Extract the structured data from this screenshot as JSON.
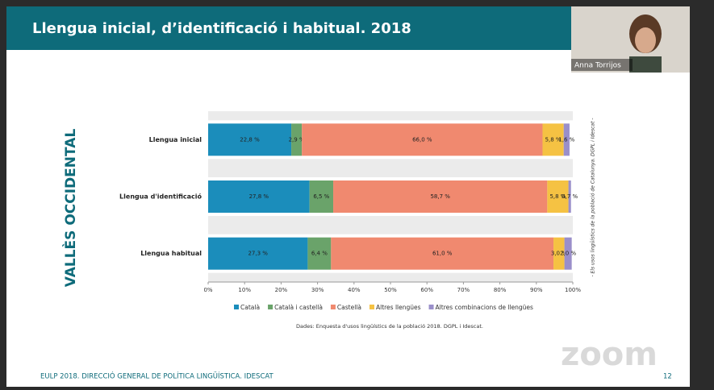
{
  "header": {
    "title": "Llengua inicial, d’identificació i habitual. 2018"
  },
  "video": {
    "name": "Anna Torrijos"
  },
  "watermark": "zoom",
  "footer": {
    "text": "EULP 2018. DIRECCIÓ GENERAL DE POLÍTICA LINGÜÍSTICA. IDESCAT",
    "page": "12"
  },
  "chart_data": {
    "type": "bar",
    "orientation": "horizontal",
    "stacked": true,
    "side_title": "VALLÈS OCCIDENTAL",
    "side_note": "- Els usos lingüístics de la població de Catalunya. DGPL i Idescat -",
    "source": "Dades: Enquesta d'usos lingüístics de la població 2018. DGPL i Idescat.",
    "categories": [
      "Llengua inicial",
      "Llengua d'identificació",
      "Llengua habitual"
    ],
    "series": [
      {
        "name": "Català",
        "color": "#1b8dbb",
        "values": [
          22.8,
          27.8,
          27.3
        ],
        "value_labels": [
          "22,8 %",
          "27,8 %",
          "27,3 %"
        ]
      },
      {
        "name": "Català i castellà",
        "color": "#6aa36a",
        "values": [
          2.9,
          6.5,
          6.4
        ],
        "value_labels": [
          "2,9 %",
          "6,5 %",
          "6,4 %"
        ]
      },
      {
        "name": "Castellà",
        "color": "#f0896f",
        "values": [
          66.0,
          58.7,
          61.0
        ],
        "value_labels": [
          "66,0 %",
          "58,7 %",
          "61,0 %"
        ]
      },
      {
        "name": "Altres llengües",
        "color": "#f5c243",
        "values": [
          5.8,
          5.8,
          3.0
        ],
        "value_labels": [
          "5,8 %",
          "5,8 %",
          "3,0 %"
        ]
      },
      {
        "name": "Altres combinacions de llengües",
        "color": "#9a8fca",
        "values": [
          1.6,
          0.7,
          2.0
        ],
        "value_labels": [
          "1,6 %",
          "0,7 %",
          "2,0 %"
        ]
      }
    ],
    "xlim": [
      0,
      100
    ],
    "xticks": [
      {
        "value": 0,
        "label": "0%"
      },
      {
        "value": 10,
        "label": "10%"
      },
      {
        "value": 20,
        "label": "20%"
      },
      {
        "value": 30,
        "label": "30%"
      },
      {
        "value": 40,
        "label": "40%"
      },
      {
        "value": 50,
        "label": "50%"
      },
      {
        "value": 60,
        "label": "60%"
      },
      {
        "value": 70,
        "label": "70%"
      },
      {
        "value": 80,
        "label": "80%"
      },
      {
        "value": 90,
        "label": "90%"
      },
      {
        "value": 100,
        "label": "100%"
      }
    ]
  }
}
